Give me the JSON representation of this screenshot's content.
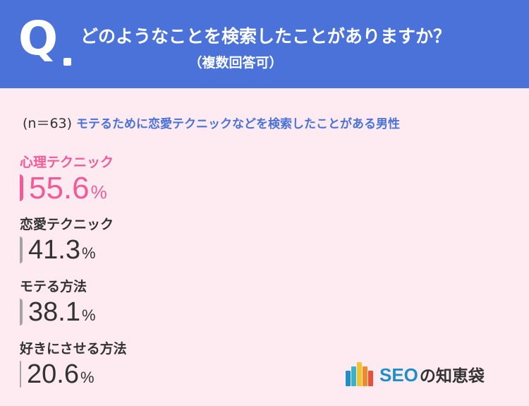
{
  "header": {
    "q_mark": "Q",
    "title": "どのようなことを検索したことがありますか？",
    "subtitle": "（複数回答可）"
  },
  "sample": {
    "n_label": "(n＝63)",
    "description": "モテるために恋愛テクニックなどを検索したことがある男性"
  },
  "colors": {
    "header_bg": "#4a72d8",
    "highlight": "#f25a98",
    "bar_default": "#a3a3a3",
    "background": "#fdebf1"
  },
  "chart_data": {
    "type": "bar",
    "orientation": "horizontal",
    "unit": "%",
    "xlim": [
      0,
      100
    ],
    "categories": [
      "心理テクニック",
      "恋愛テクニック",
      "モテる方法",
      "好きにさせる方法"
    ],
    "values": [
      55.6,
      41.3,
      38.1,
      20.6
    ],
    "value_labels": [
      "55.6",
      "41.3",
      "38.1",
      "20.6"
    ],
    "highlighted_index": 0
  },
  "logo": {
    "text": "SEO",
    "suffix": "の知恵袋"
  }
}
